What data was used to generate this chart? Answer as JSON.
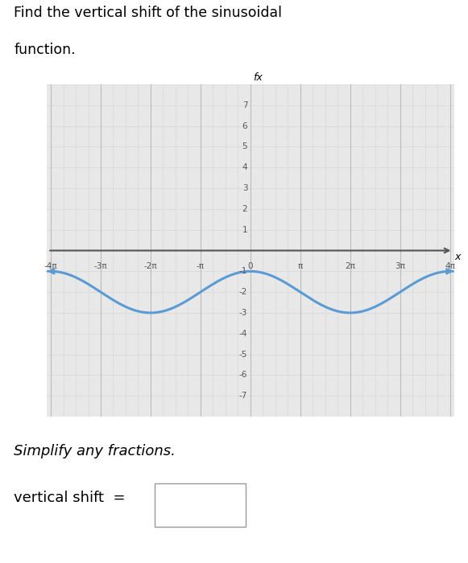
{
  "title_line1": "Find the vertical shift of the sinusoidal",
  "title_line2": "function.",
  "subtitle": "Simplify any fractions.",
  "answer_label": "vertical shift  =",
  "curve_color": "#5b9bd5",
  "curve_amplitude": 1,
  "curve_vertical_shift": -2,
  "curve_period_factor": 2,
  "x_min": -4,
  "x_max": 4,
  "x_ticks_pi": [
    -4,
    -3,
    -2,
    -1,
    0,
    1,
    2,
    3,
    4
  ],
  "x_tick_labels": [
    "-4π",
    "-3π",
    "-2π",
    "-π",
    "0",
    "π",
    "2π",
    "3π",
    "4π"
  ],
  "y_min": -8,
  "y_max": 8,
  "y_ticks": [
    -7,
    -6,
    -5,
    -4,
    -3,
    -2,
    -1,
    1,
    2,
    3,
    4,
    5,
    6,
    7
  ],
  "grid_minor_color": "#d8d8d8",
  "grid_major_color": "#bbbbbb",
  "axis_color": "#555555",
  "background_color": "#ffffff",
  "plot_bg_color": "#e8e8e8",
  "fx_label": "fx",
  "x_label": "x",
  "fig_width": 5.81,
  "fig_height": 7.0,
  "dpi": 100
}
